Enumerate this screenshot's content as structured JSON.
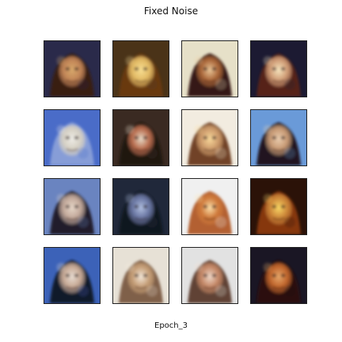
{
  "title": "Fixed Noise",
  "caption": "Epoch_3",
  "grid": {
    "rows": 4,
    "cols": 4,
    "tiles": [
      {
        "bg": "#2a2a4a",
        "face": "#c88a5a",
        "hair": "#3a1a10",
        "accent": "#e0b070"
      },
      {
        "bg": "#4a3318",
        "face": "#e8c068",
        "hair": "#6a3a12",
        "accent": "#ffe79a"
      },
      {
        "bg": "#e6e0c8",
        "face": "#b06a3a",
        "hair": "#2a0d0a",
        "accent": "#f4d0a0"
      },
      {
        "bg": "#1c1a32",
        "face": "#d6a27a",
        "hair": "#5a2418",
        "accent": "#fff0c8"
      },
      {
        "bg": "#4a6cc8",
        "face": "#d9d2c2",
        "hair": "#8aa0d8",
        "accent": "#f3f0e7"
      },
      {
        "bg": "#3a2a22",
        "face": "#c07050",
        "hair": "#1f1410",
        "accent": "#f2e6d2"
      },
      {
        "bg": "#f2ece0",
        "face": "#d2a070",
        "hair": "#6a3a1a",
        "accent": "#ffe0a0"
      },
      {
        "bg": "#6a9ad8",
        "face": "#d0a078",
        "hair": "#1a0f14",
        "accent": "#f4d6b6"
      },
      {
        "bg": "#6a84c0",
        "face": "#cbb0a0",
        "hair": "#1a1622",
        "accent": "#f0e0d0"
      },
      {
        "bg": "#20283a",
        "face": "#6d7aa8",
        "hair": "#121620",
        "accent": "#b9c8ea"
      },
      {
        "bg": "#f0f0f0",
        "face": "#d07a3a",
        "hair": "#b05a28",
        "accent": "#ffe6b0"
      },
      {
        "bg": "#2b1208",
        "face": "#d08a3a",
        "hair": "#8a3a12",
        "accent": "#ffe06a"
      },
      {
        "bg": "#3c62b8",
        "face": "#d0b09a",
        "hair": "#0f1422",
        "accent": "#f2e6da"
      },
      {
        "bg": "#e7e1d6",
        "face": "#c8a078",
        "hair": "#7a5a40",
        "accent": "#f8eee0"
      },
      {
        "bg": "#e2e2e2",
        "face": "#c98a68",
        "hair": "#5a3a2a",
        "accent": "#f6e0d0"
      },
      {
        "bg": "#1a1624",
        "face": "#c86a2e",
        "hair": "#2a0d08",
        "accent": "#f0b070"
      }
    ]
  }
}
